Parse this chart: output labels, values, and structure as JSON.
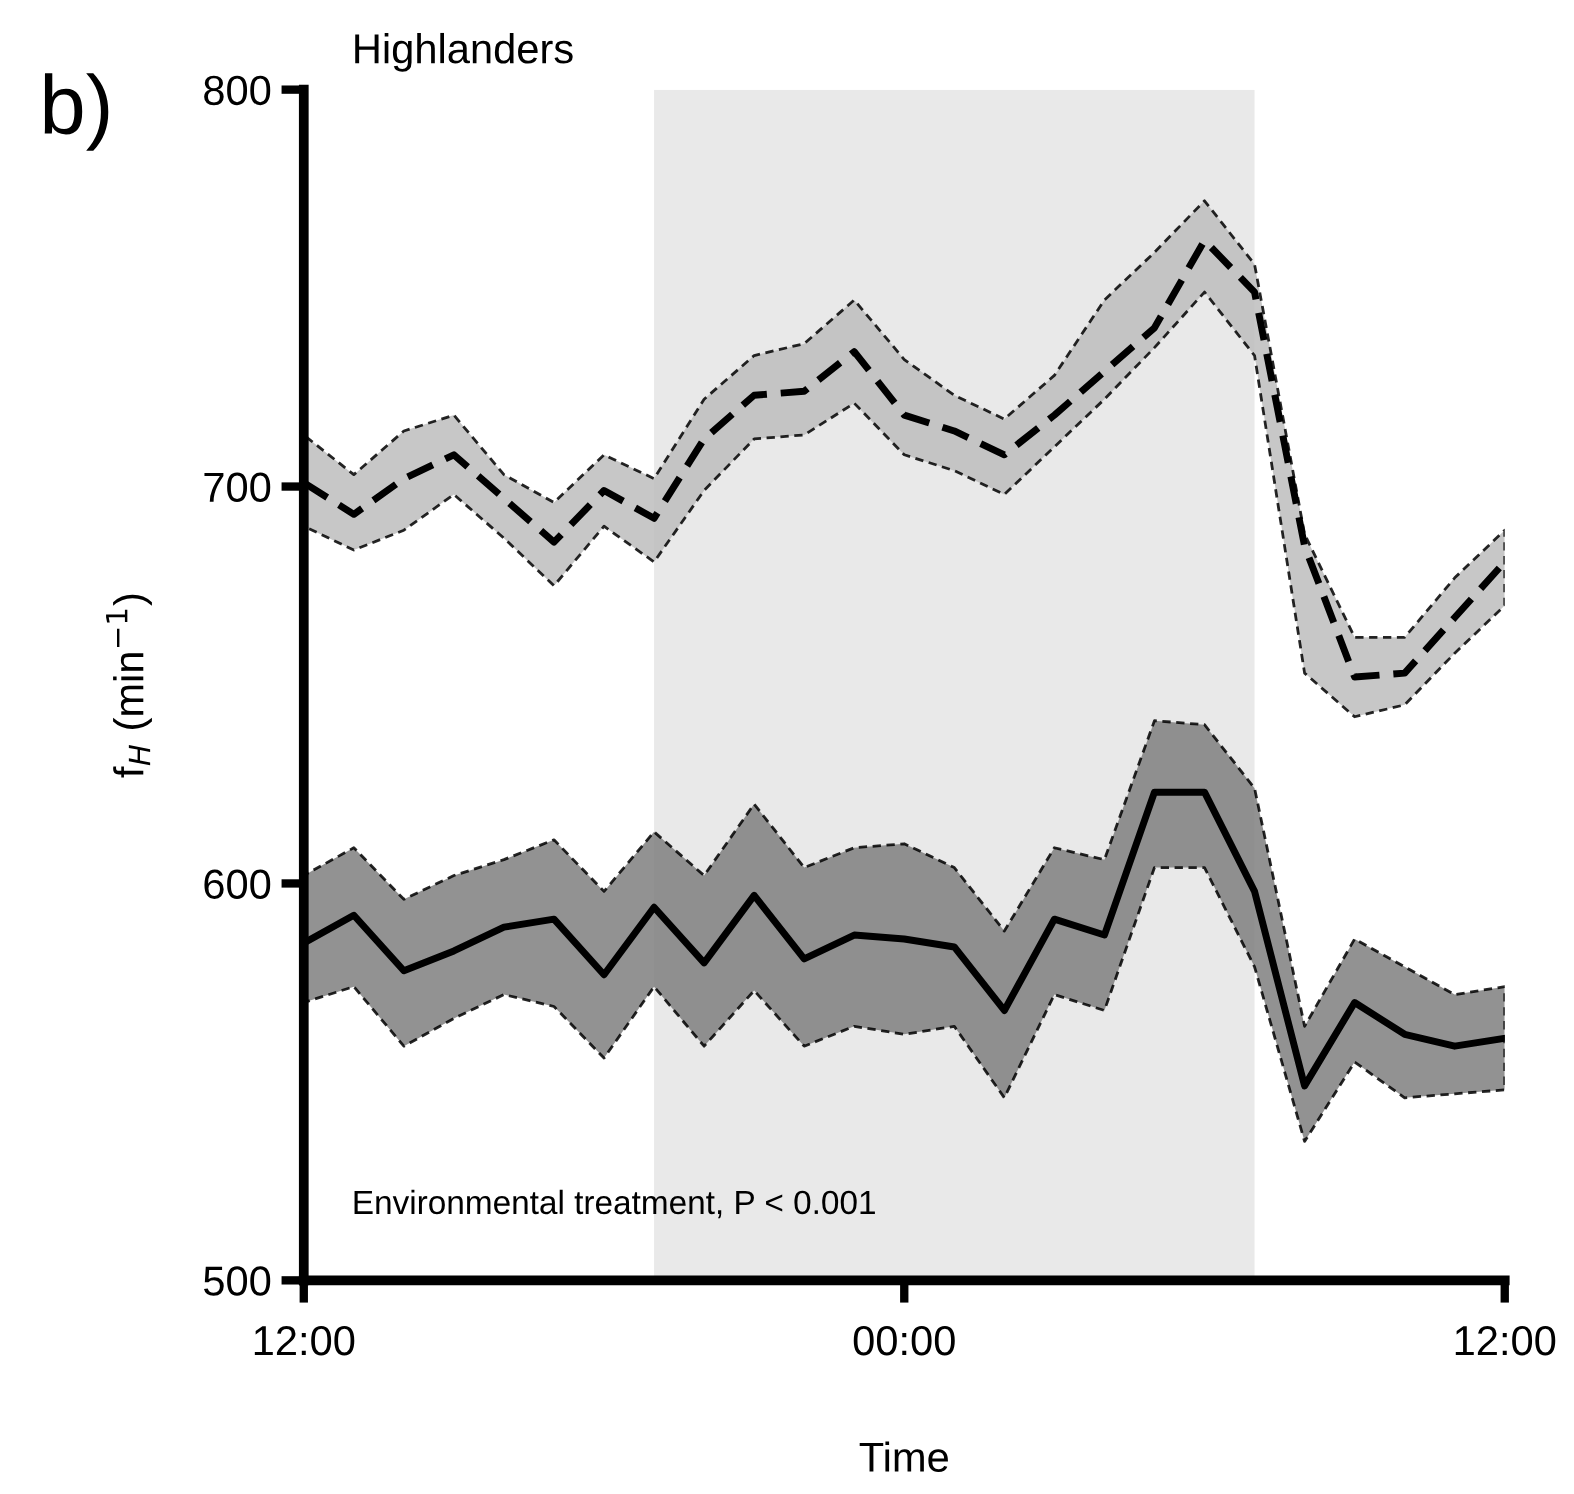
{
  "chart_data": {
    "type": "line",
    "title": "Highlanders",
    "xlabel": "Time",
    "ylabel": "f$_{H}$ (min$^{−1}$)",
    "annotations": [
      "b)",
      "Environmental treatment, P < 0.001"
    ],
    "x": [
      -12,
      -11,
      -10,
      -9,
      -8,
      -7,
      -6,
      -5,
      -4,
      -3,
      -2,
      -1,
      0,
      1,
      2,
      3,
      4,
      5,
      6,
      7,
      8,
      9,
      10,
      11,
      12
    ],
    "series": [
      {
        "color": "#000000",
        "line_style": "dashed",
        "values": [
          701,
          693,
          702,
          708,
          697,
          686,
          699,
          692,
          712,
          723,
          724,
          734,
          718,
          714,
          708,
          718,
          729,
          740,
          762,
          749,
          685,
          652,
          653,
          667,
          681
        ],
        "upper": [
          713,
          703,
          714,
          718,
          703,
          696,
          708,
          702,
          722,
          733,
          736,
          747,
          732,
          723,
          717,
          728,
          747,
          759,
          772,
          756,
          688,
          662,
          662,
          677,
          689
        ],
        "lower": [
          690,
          684,
          689,
          698,
          687,
          675,
          690,
          681,
          699,
          712,
          713,
          721,
          708,
          704,
          698,
          710,
          722,
          735,
          749,
          733,
          653,
          642,
          645,
          658,
          670
        ]
      },
      {
        "color": "#000000",
        "line_style": "solid",
        "values": [
          585,
          592,
          578,
          583,
          589,
          591,
          577,
          594,
          580,
          597,
          581,
          587,
          586,
          584,
          568,
          591,
          587,
          623,
          623,
          598,
          549,
          570,
          562,
          559,
          561
        ],
        "upper": [
          602,
          609,
          596,
          602,
          606,
          611,
          598,
          613,
          602,
          620,
          604,
          609,
          610,
          604,
          588,
          609,
          606,
          641,
          640,
          624,
          564,
          586,
          579,
          572,
          574
        ],
        "lower": [
          570,
          574,
          559,
          566,
          572,
          569,
          556,
          574,
          559,
          573,
          559,
          564,
          562,
          564,
          546,
          572,
          568,
          604,
          604,
          579,
          535,
          555,
          546,
          547,
          548
        ]
      }
    ],
    "bands": [
      {
        "axis": "x",
        "from": -5,
        "to": 7,
        "color": "#e9e9e9"
      }
    ],
    "xlim": [
      -12,
      12
    ],
    "xticks": [
      {
        "value": -12,
        "label": "12:00"
      },
      {
        "value": 0,
        "label": "00:00"
      },
      {
        "value": 12,
        "label": "12:00"
      }
    ],
    "ylim": [
      500,
      800
    ],
    "yticks": [
      500,
      600,
      700,
      800
    ],
    "grid": false,
    "legend": false,
    "marker": "none"
  }
}
